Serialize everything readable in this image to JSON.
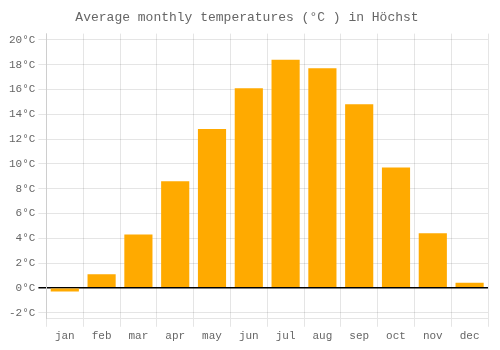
{
  "chart_data": {
    "type": "bar",
    "title": "Average monthly temperatures (°C ) in Höchst",
    "categories": [
      "jan",
      "feb",
      "mar",
      "apr",
      "may",
      "jun",
      "jul",
      "aug",
      "sep",
      "oct",
      "nov",
      "dec"
    ],
    "values": [
      -0.3,
      1.1,
      4.3,
      8.6,
      12.8,
      16.1,
      18.4,
      17.7,
      14.8,
      9.7,
      4.4,
      0.4
    ],
    "color": "#FFAA00",
    "ylim": [
      -2.5,
      20.5
    ],
    "yticks": [
      {
        "value": -2,
        "label": "-2°C"
      },
      {
        "value": 0,
        "label": "0°C"
      },
      {
        "value": 2,
        "label": "2°C"
      },
      {
        "value": 4,
        "label": "4°C"
      },
      {
        "value": 6,
        "label": "6°C"
      },
      {
        "value": 8,
        "label": "8°C"
      },
      {
        "value": 10,
        "label": "10°C"
      },
      {
        "value": 12,
        "label": "12°C"
      },
      {
        "value": 14,
        "label": "14°C"
      },
      {
        "value": 16,
        "label": "16°C"
      },
      {
        "value": 18,
        "label": "18°C"
      },
      {
        "value": 20,
        "label": "20°C"
      }
    ],
    "grid": true
  }
}
